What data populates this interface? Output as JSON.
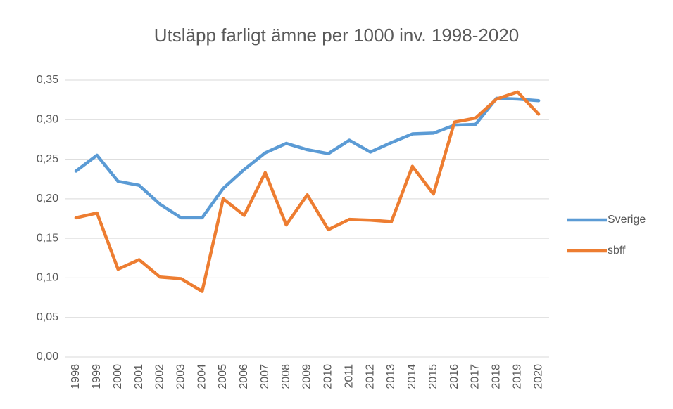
{
  "chart_data": {
    "type": "line",
    "title": "Utsläpp farligt ämne per 1000 inv. 1998-2020",
    "categories": [
      "1998",
      "1999",
      "2000",
      "2001",
      "2002",
      "2003",
      "2004",
      "2005",
      "2006",
      "2007",
      "2008",
      "2009",
      "2010",
      "2011",
      "2012",
      "2013",
      "2014",
      "2015",
      "2016",
      "2017",
      "2018",
      "2019",
      "2020"
    ],
    "series": [
      {
        "name": "Sverige",
        "color": "#5b9bd5",
        "values": [
          0.235,
          0.255,
          0.222,
          0.217,
          0.193,
          0.176,
          0.176,
          0.213,
          0.237,
          0.258,
          0.27,
          0.262,
          0.257,
          0.274,
          0.259,
          0.271,
          0.282,
          0.283,
          0.293,
          0.294,
          0.327,
          0.326,
          0.324
        ]
      },
      {
        "name": "sbff",
        "color": "#ed7d31",
        "values": [
          0.176,
          0.182,
          0.111,
          0.123,
          0.101,
          0.099,
          0.083,
          0.2,
          0.179,
          0.233,
          0.167,
          0.205,
          0.161,
          0.174,
          0.173,
          0.171,
          0.241,
          0.206,
          0.297,
          0.302,
          0.326,
          0.335,
          0.307
        ]
      }
    ],
    "ylim": [
      0,
      0.35
    ],
    "yticks": [
      {
        "value": 0,
        "label": "0,00"
      },
      {
        "value": 0.05,
        "label": "0,05"
      },
      {
        "value": 0.1,
        "label": "0,10"
      },
      {
        "value": 0.15,
        "label": "0,15"
      },
      {
        "value": 0.2,
        "label": "0,20"
      },
      {
        "value": 0.25,
        "label": "0,25"
      },
      {
        "value": 0.3,
        "label": "0,30"
      },
      {
        "value": 0.35,
        "label": "0,35"
      }
    ],
    "grid": true,
    "legend": "right"
  }
}
